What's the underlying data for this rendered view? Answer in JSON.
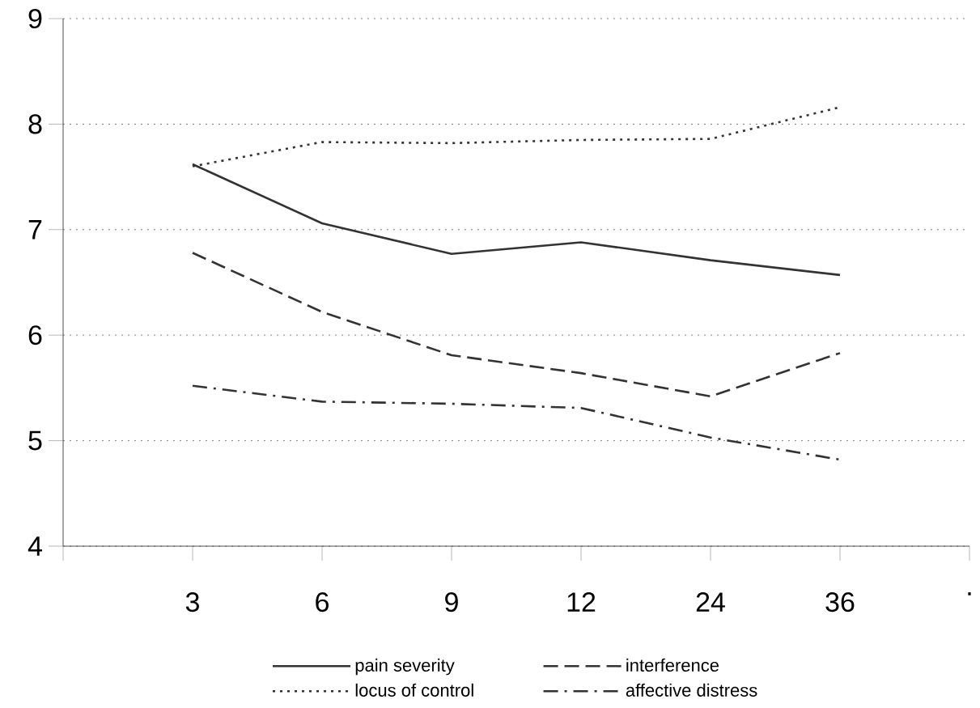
{
  "chart_data": {
    "type": "line",
    "categories": [
      null,
      "3",
      "6",
      "9",
      "12",
      "24",
      "36",
      "."
    ],
    "series": [
      {
        "name": "pain severity",
        "color": "#333333",
        "line_style": "solid",
        "values": [
          null,
          7.62,
          7.06,
          6.77,
          6.88,
          6.71,
          6.57,
          null
        ]
      },
      {
        "name": "interference",
        "color": "#333333",
        "line_style": "dashed",
        "values": [
          null,
          6.78,
          6.22,
          5.81,
          5.64,
          5.42,
          5.83,
          null
        ]
      },
      {
        "name": "locus of control",
        "color": "#333333",
        "line_style": "dotted",
        "values": [
          null,
          7.6,
          7.83,
          7.82,
          7.85,
          7.86,
          8.16,
          null
        ]
      },
      {
        "name": "affective distress",
        "color": "#333333",
        "line_style": "dashdot",
        "values": [
          null,
          5.52,
          5.37,
          5.35,
          5.31,
          5.03,
          4.82,
          null
        ]
      }
    ],
    "ylim": [
      4,
      9
    ],
    "yticks": [
      4,
      5,
      6,
      7,
      8,
      9
    ],
    "grid": "y",
    "legend": "bottom",
    "marker": "none"
  }
}
